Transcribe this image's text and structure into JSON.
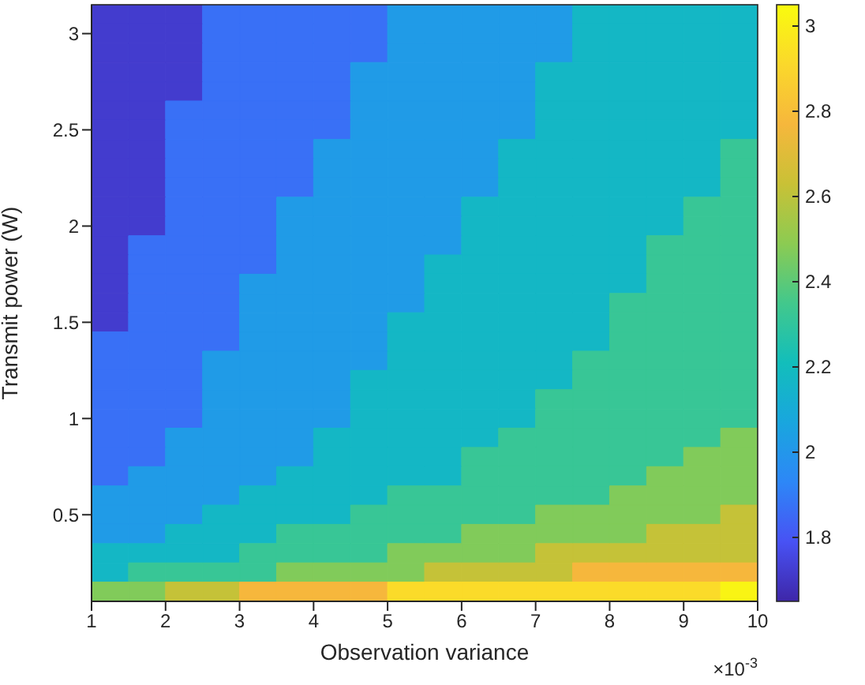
{
  "chart_data": {
    "type": "heatmap",
    "xlabel": "Observation variance",
    "ylabel": "Transmit power (W)",
    "annotations": [
      "×10$^{-3}$"
    ],
    "x": [
      1.25,
      1.75,
      2.25,
      2.75,
      3.25,
      3.75,
      4.25,
      4.75,
      5.25,
      5.75,
      6.25,
      6.75,
      7.25,
      7.75,
      8.25,
      8.75,
      9.25,
      9.75
    ],
    "y": [
      3.1,
      3.0,
      2.9,
      2.8,
      2.7,
      2.6,
      2.5,
      2.4,
      2.3,
      2.2,
      2.1,
      2.0,
      1.9,
      1.8,
      1.7,
      1.6,
      1.5,
      1.4,
      1.3,
      1.2,
      1.1,
      1.0,
      0.9,
      0.8,
      0.7,
      0.6,
      0.5,
      0.4,
      0.3,
      0.2,
      0.1
    ],
    "xlim": [
      1,
      10
    ],
    "xticks": [
      1,
      2,
      3,
      4,
      5,
      6,
      7,
      8,
      9,
      10
    ],
    "ylim": [
      0.05,
      3.15
    ],
    "yticks": [
      0.5,
      1,
      1.5,
      2,
      2.5,
      3
    ],
    "clim": [
      1.65,
      3.05
    ],
    "cticks": [
      1.8,
      2,
      2.2,
      2.4,
      2.6,
      2.8,
      3
    ],
    "cells": [
      [
        1.72,
        1.72,
        1.72,
        1.87,
        1.87,
        1.87,
        1.87,
        1.87,
        2.02,
        2.02,
        2.02,
        2.02,
        2.02,
        2.17,
        2.17,
        2.17,
        2.17,
        2.17
      ],
      [
        1.72,
        1.72,
        1.72,
        1.87,
        1.87,
        1.87,
        1.87,
        1.87,
        2.02,
        2.02,
        2.02,
        2.02,
        2.02,
        2.17,
        2.17,
        2.17,
        2.17,
        2.17
      ],
      [
        1.72,
        1.72,
        1.72,
        1.87,
        1.87,
        1.87,
        1.87,
        1.87,
        2.02,
        2.02,
        2.02,
        2.02,
        2.02,
        2.17,
        2.17,
        2.17,
        2.17,
        2.17
      ],
      [
        1.72,
        1.72,
        1.72,
        1.87,
        1.87,
        1.87,
        1.87,
        2.02,
        2.02,
        2.02,
        2.02,
        2.02,
        2.17,
        2.17,
        2.17,
        2.17,
        2.17,
        2.17
      ],
      [
        1.72,
        1.72,
        1.72,
        1.87,
        1.87,
        1.87,
        1.87,
        2.02,
        2.02,
        2.02,
        2.02,
        2.02,
        2.17,
        2.17,
        2.17,
        2.17,
        2.17,
        2.17
      ],
      [
        1.72,
        1.72,
        1.87,
        1.87,
        1.87,
        1.87,
        1.87,
        2.02,
        2.02,
        2.02,
        2.02,
        2.02,
        2.17,
        2.17,
        2.17,
        2.17,
        2.17,
        2.17
      ],
      [
        1.72,
        1.72,
        1.87,
        1.87,
        1.87,
        1.87,
        1.87,
        2.02,
        2.02,
        2.02,
        2.02,
        2.02,
        2.17,
        2.17,
        2.17,
        2.17,
        2.17,
        2.17
      ],
      [
        1.72,
        1.72,
        1.87,
        1.87,
        1.87,
        1.87,
        2.02,
        2.02,
        2.02,
        2.02,
        2.02,
        2.17,
        2.17,
        2.17,
        2.17,
        2.17,
        2.17,
        2.32
      ],
      [
        1.72,
        1.72,
        1.87,
        1.87,
        1.87,
        1.87,
        2.02,
        2.02,
        2.02,
        2.02,
        2.02,
        2.17,
        2.17,
        2.17,
        2.17,
        2.17,
        2.17,
        2.32
      ],
      [
        1.72,
        1.72,
        1.87,
        1.87,
        1.87,
        1.87,
        2.02,
        2.02,
        2.02,
        2.02,
        2.02,
        2.17,
        2.17,
        2.17,
        2.17,
        2.17,
        2.17,
        2.32
      ],
      [
        1.72,
        1.72,
        1.87,
        1.87,
        1.87,
        2.02,
        2.02,
        2.02,
        2.02,
        2.02,
        2.17,
        2.17,
        2.17,
        2.17,
        2.17,
        2.17,
        2.32,
        2.32
      ],
      [
        1.72,
        1.72,
        1.87,
        1.87,
        1.87,
        2.02,
        2.02,
        2.02,
        2.02,
        2.02,
        2.17,
        2.17,
        2.17,
        2.17,
        2.17,
        2.17,
        2.32,
        2.32
      ],
      [
        1.72,
        1.87,
        1.87,
        1.87,
        1.87,
        2.02,
        2.02,
        2.02,
        2.02,
        2.02,
        2.17,
        2.17,
        2.17,
        2.17,
        2.17,
        2.32,
        2.32,
        2.32
      ],
      [
        1.72,
        1.87,
        1.87,
        1.87,
        1.87,
        2.02,
        2.02,
        2.02,
        2.02,
        2.17,
        2.17,
        2.17,
        2.17,
        2.17,
        2.17,
        2.32,
        2.32,
        2.32
      ],
      [
        1.72,
        1.87,
        1.87,
        1.87,
        2.02,
        2.02,
        2.02,
        2.02,
        2.02,
        2.17,
        2.17,
        2.17,
        2.17,
        2.17,
        2.17,
        2.32,
        2.32,
        2.32
      ],
      [
        1.72,
        1.87,
        1.87,
        1.87,
        2.02,
        2.02,
        2.02,
        2.02,
        2.02,
        2.17,
        2.17,
        2.17,
        2.17,
        2.17,
        2.32,
        2.32,
        2.32,
        2.32
      ],
      [
        1.72,
        1.87,
        1.87,
        1.87,
        2.02,
        2.02,
        2.02,
        2.02,
        2.17,
        2.17,
        2.17,
        2.17,
        2.17,
        2.17,
        2.32,
        2.32,
        2.32,
        2.32
      ],
      [
        1.87,
        1.87,
        1.87,
        1.87,
        2.02,
        2.02,
        2.02,
        2.02,
        2.17,
        2.17,
        2.17,
        2.17,
        2.17,
        2.17,
        2.32,
        2.32,
        2.32,
        2.32
      ],
      [
        1.87,
        1.87,
        1.87,
        2.02,
        2.02,
        2.02,
        2.02,
        2.02,
        2.17,
        2.17,
        2.17,
        2.17,
        2.17,
        2.32,
        2.32,
        2.32,
        2.32,
        2.32
      ],
      [
        1.87,
        1.87,
        1.87,
        2.02,
        2.02,
        2.02,
        2.02,
        2.17,
        2.17,
        2.17,
        2.17,
        2.17,
        2.17,
        2.32,
        2.32,
        2.32,
        2.32,
        2.32
      ],
      [
        1.87,
        1.87,
        1.87,
        2.02,
        2.02,
        2.02,
        2.02,
        2.17,
        2.17,
        2.17,
        2.17,
        2.17,
        2.32,
        2.32,
        2.32,
        2.32,
        2.32,
        2.32
      ],
      [
        1.87,
        1.87,
        1.87,
        2.02,
        2.02,
        2.02,
        2.02,
        2.17,
        2.17,
        2.17,
        2.17,
        2.17,
        2.32,
        2.32,
        2.32,
        2.32,
        2.32,
        2.32
      ],
      [
        1.87,
        1.87,
        2.02,
        2.02,
        2.02,
        2.02,
        2.17,
        2.17,
        2.17,
        2.17,
        2.17,
        2.32,
        2.32,
        2.32,
        2.32,
        2.32,
        2.32,
        2.47
      ],
      [
        1.87,
        1.87,
        2.02,
        2.02,
        2.02,
        2.02,
        2.17,
        2.17,
        2.17,
        2.17,
        2.32,
        2.32,
        2.32,
        2.32,
        2.32,
        2.32,
        2.47,
        2.47
      ],
      [
        1.87,
        2.02,
        2.02,
        2.02,
        2.02,
        2.17,
        2.17,
        2.17,
        2.17,
        2.17,
        2.32,
        2.32,
        2.32,
        2.32,
        2.32,
        2.47,
        2.47,
        2.47
      ],
      [
        2.02,
        2.02,
        2.02,
        2.02,
        2.17,
        2.17,
        2.17,
        2.17,
        2.32,
        2.32,
        2.32,
        2.32,
        2.32,
        2.32,
        2.47,
        2.47,
        2.47,
        2.47
      ],
      [
        2.02,
        2.02,
        2.02,
        2.17,
        2.17,
        2.17,
        2.17,
        2.32,
        2.32,
        2.32,
        2.32,
        2.32,
        2.47,
        2.47,
        2.47,
        2.47,
        2.47,
        2.62
      ],
      [
        2.02,
        2.02,
        2.17,
        2.17,
        2.17,
        2.32,
        2.32,
        2.32,
        2.32,
        2.32,
        2.47,
        2.47,
        2.47,
        2.47,
        2.47,
        2.62,
        2.62,
        2.62
      ],
      [
        2.17,
        2.17,
        2.17,
        2.17,
        2.32,
        2.32,
        2.32,
        2.32,
        2.47,
        2.47,
        2.47,
        2.47,
        2.62,
        2.62,
        2.62,
        2.62,
        2.62,
        2.62
      ],
      [
        2.17,
        2.32,
        2.32,
        2.32,
        2.32,
        2.47,
        2.47,
        2.47,
        2.47,
        2.62,
        2.62,
        2.62,
        2.62,
        2.77,
        2.77,
        2.77,
        2.77,
        2.77
      ],
      [
        2.47,
        2.47,
        2.62,
        2.62,
        2.77,
        2.77,
        2.77,
        2.77,
        2.92,
        2.92,
        2.92,
        2.92,
        2.92,
        2.92,
        2.92,
        2.92,
        2.92,
        3.02
      ]
    ]
  }
}
